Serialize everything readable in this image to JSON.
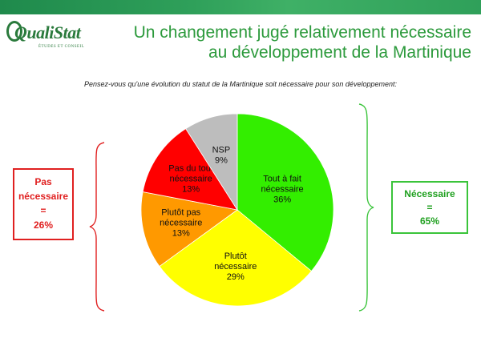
{
  "logo": {
    "name": "QualiStat",
    "tagline": "ÉTUDES ET CONSEIL"
  },
  "title": {
    "line1": "Un changement jugé relativement nécessaire",
    "line2": "au développement de la Martinique"
  },
  "question": "Pensez-vous qu'une évolution du statut de la Martinique  soit nécessaire pour son développement:",
  "left_summary": {
    "line1": "Pas",
    "line2": "nécessaire",
    "line3": "=",
    "line4": "26%"
  },
  "right_summary": {
    "line1": "Nécessaire",
    "line2": "=",
    "line3": "65%"
  },
  "colors": {
    "title": "#2c9a3c",
    "negative": "#e02020",
    "positive": "#3ac43a"
  },
  "chart_data": {
    "type": "pie",
    "start_angle_deg": 0,
    "direction": "clockwise",
    "slices": [
      {
        "label": [
          "Tout à fait",
          "nécessaire"
        ],
        "value": 36,
        "display": "36%",
        "color": "#33ee00"
      },
      {
        "label": [
          "Plutôt",
          "nécessaire"
        ],
        "value": 29,
        "display": "29%",
        "color": "#ffff00"
      },
      {
        "label": [
          "Plutôt pas",
          "nécessaire"
        ],
        "value": 13,
        "display": "13%",
        "color": "#ff9900"
      },
      {
        "label": [
          "Pas du tout",
          "nécessaire"
        ],
        "value": 13,
        "display": "13%",
        "color": "#ff0000"
      },
      {
        "label": [
          "NSP"
        ],
        "value": 9,
        "display": "9%",
        "color": "#bdbdbd"
      }
    ]
  }
}
